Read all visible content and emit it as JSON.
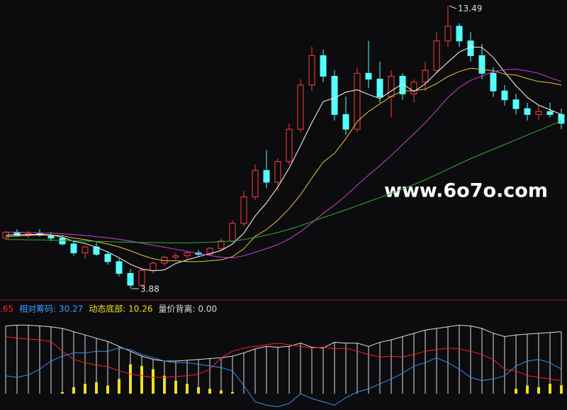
{
  "chart_data": [
    {
      "type": "candlestick",
      "annotation": "www.6o7o.com",
      "high_label": "13.49",
      "low_label": "3.88",
      "ylim": [
        3.64,
        13.69
      ],
      "up_color": "#ff3c3c",
      "down_color": "#54ffff",
      "candles": [
        [
          5.6,
          5.85,
          5.55,
          5.8
        ],
        [
          5.8,
          5.9,
          5.65,
          5.7
        ],
        [
          5.7,
          5.85,
          5.6,
          5.75
        ],
        [
          5.75,
          5.9,
          5.65,
          5.7
        ],
        [
          5.7,
          5.8,
          5.5,
          5.6
        ],
        [
          5.6,
          5.7,
          5.35,
          5.4
        ],
        [
          5.4,
          5.5,
          5.0,
          5.1
        ],
        [
          5.1,
          5.35,
          4.9,
          5.3
        ],
        [
          5.3,
          5.45,
          5.0,
          5.05
        ],
        [
          5.05,
          5.15,
          4.7,
          4.8
        ],
        [
          4.8,
          4.9,
          4.3,
          4.4
        ],
        [
          4.4,
          4.55,
          3.88,
          4.0
        ],
        [
          4.0,
          4.6,
          3.95,
          4.5
        ],
        [
          4.5,
          4.8,
          4.4,
          4.75
        ],
        [
          4.75,
          5.0,
          4.65,
          4.95
        ],
        [
          4.95,
          5.1,
          4.85,
          5.0
        ],
        [
          5.0,
          5.15,
          4.9,
          5.1
        ],
        [
          5.1,
          5.2,
          4.95,
          5.05
        ],
        [
          5.05,
          5.3,
          5.0,
          5.25
        ],
        [
          5.25,
          5.6,
          5.2,
          5.5
        ],
        [
          5.5,
          6.2,
          5.45,
          6.1
        ],
        [
          6.1,
          7.2,
          6.0,
          7.0
        ],
        [
          7.0,
          8.1,
          6.9,
          7.9
        ],
        [
          7.9,
          8.6,
          7.3,
          7.5
        ],
        [
          7.5,
          8.3,
          7.2,
          8.2
        ],
        [
          8.2,
          9.5,
          8.1,
          9.3
        ],
        [
          9.3,
          11.0,
          9.2,
          10.8
        ],
        [
          10.8,
          12.1,
          10.6,
          11.8
        ],
        [
          11.8,
          12.0,
          10.9,
          11.1
        ],
        [
          11.1,
          11.3,
          9.6,
          9.8
        ],
        [
          9.8,
          10.4,
          9.1,
          9.3
        ],
        [
          9.3,
          11.4,
          9.2,
          11.2
        ],
        [
          11.2,
          12.3,
          10.7,
          11.0
        ],
        [
          11.0,
          11.6,
          10.2,
          10.4
        ],
        [
          10.4,
          11.3,
          9.7,
          11.1
        ],
        [
          11.1,
          11.2,
          10.3,
          10.5
        ],
        [
          10.5,
          11.0,
          10.2,
          10.9
        ],
        [
          10.9,
          11.6,
          10.6,
          11.3
        ],
        [
          11.3,
          12.6,
          11.2,
          12.3
        ],
        [
          12.3,
          13.49,
          12.1,
          12.8
        ],
        [
          12.8,
          12.9,
          12.1,
          12.3
        ],
        [
          12.3,
          12.6,
          11.6,
          11.8
        ],
        [
          11.8,
          12.2,
          11.0,
          11.2
        ],
        [
          11.2,
          11.4,
          10.4,
          10.6
        ],
        [
          10.6,
          10.8,
          10.1,
          10.3
        ],
        [
          10.3,
          10.5,
          9.8,
          10.0
        ],
        [
          10.0,
          10.2,
          9.6,
          9.8
        ],
        [
          9.8,
          10.1,
          9.6,
          9.9
        ],
        [
          9.9,
          10.2,
          9.7,
          9.8
        ],
        [
          9.8,
          10.0,
          9.3,
          9.5
        ]
      ],
      "series": [
        {
          "color": "#ffffff",
          "values": [
            5.7,
            5.72,
            5.72,
            5.73,
            5.71,
            5.63,
            5.49,
            5.42,
            5.29,
            5.13,
            4.93,
            4.71,
            4.55,
            4.49,
            4.52,
            4.74,
            4.86,
            4.97,
            5.07,
            5.18,
            5.4,
            5.77,
            6.35,
            6.8,
            7.34,
            7.98,
            8.74,
            9.52,
            10.24,
            10.36,
            10.56,
            10.64,
            10.48,
            10.34,
            10.6,
            10.84,
            10.58,
            10.84,
            11.22,
            11.58,
            11.92,
            12.1,
            12.08,
            11.74,
            11.24,
            10.78,
            10.38,
            10.12,
            9.96,
            9.8
          ]
        },
        {
          "color": "#e8c838",
          "values": [
            5.65,
            5.67,
            5.69,
            5.7,
            5.7,
            5.68,
            5.6,
            5.55,
            5.48,
            5.4,
            5.3,
            5.17,
            5.02,
            4.9,
            4.83,
            4.83,
            4.8,
            4.8,
            4.83,
            4.86,
            4.97,
            5.24,
            5.66,
            5.89,
            6.21,
            6.6,
            7.07,
            7.64,
            8.18,
            8.48,
            8.98,
            9.56,
            9.9,
            10.16,
            10.42,
            10.6,
            10.61,
            10.66,
            10.85,
            11.09,
            11.26,
            11.37,
            11.33,
            11.29,
            11.17,
            11.14,
            11.02,
            10.92,
            10.88,
            10.8
          ]
        },
        {
          "color": "#d040d8",
          "values": [
            5.8,
            5.8,
            5.79,
            5.78,
            5.77,
            5.75,
            5.72,
            5.69,
            5.65,
            5.61,
            5.56,
            5.5,
            5.43,
            5.36,
            5.29,
            5.22,
            5.15,
            5.08,
            5.01,
            4.95,
            4.93,
            5.0,
            5.12,
            5.24,
            5.38,
            5.57,
            5.82,
            6.12,
            6.44,
            6.72,
            7.04,
            7.4,
            7.74,
            8.06,
            8.41,
            8.78,
            9.14,
            9.52,
            9.94,
            10.38,
            10.72,
            10.96,
            11.1,
            11.26,
            11.32,
            11.34,
            11.28,
            11.2,
            11.05,
            10.92
          ]
        },
        {
          "color": "#30b030",
          "values": [
            5.55,
            5.55,
            5.54,
            5.54,
            5.53,
            5.52,
            5.51,
            5.5,
            5.49,
            5.48,
            5.47,
            5.46,
            5.45,
            5.45,
            5.44,
            5.44,
            5.44,
            5.45,
            5.46,
            5.48,
            5.5,
            5.55,
            5.62,
            5.7,
            5.79,
            5.9,
            6.02,
            6.16,
            6.3,
            6.43,
            6.56,
            6.7,
            6.84,
            6.98,
            7.12,
            7.27,
            7.42,
            7.58,
            7.76,
            7.94,
            8.12,
            8.3,
            8.46,
            8.62,
            8.78,
            8.94,
            9.1,
            9.26,
            9.42,
            9.58
          ]
        }
      ]
    },
    {
      "type": "indicator",
      "legend": [
        {
          "text": ".65",
          "color": "#ff2020"
        },
        {
          "text": "相对筹码: 30.27",
          "color": "#3aa0ff"
        },
        {
          "text": "动态底部: 10.26",
          "color": "#f0e020"
        },
        {
          "text": "量价背离: 0.00",
          "color": "#dddddd"
        }
      ],
      "ylim": [
        -20,
        100
      ],
      "bars": [
        {
          "color": "#dddddd",
          "values": [
            83,
            84,
            84,
            83,
            82,
            80,
            76,
            72,
            68,
            64,
            58,
            52,
            46,
            42,
            40,
            40,
            41,
            42,
            43,
            44,
            46,
            50,
            55,
            58,
            57,
            58,
            62,
            57,
            56,
            63,
            62,
            62,
            58,
            63,
            66,
            70,
            74,
            78,
            80,
            82,
            84,
            83,
            80,
            74,
            70,
            72,
            73,
            74,
            75,
            76
          ]
        },
        {
          "color": "#f0e020",
          "values": [
            0,
            0,
            0,
            0,
            0,
            2,
            8,
            12,
            14,
            10,
            18,
            36,
            34,
            30,
            22,
            16,
            12,
            8,
            6,
            4,
            2,
            0,
            0,
            0,
            0,
            0,
            0,
            0,
            0,
            0,
            0,
            0,
            0,
            0,
            0,
            0,
            0,
            0,
            0,
            0,
            0,
            0,
            0,
            0,
            0,
            6,
            10,
            8,
            12,
            10.26
          ]
        }
      ],
      "series": [
        {
          "color": "#ff2020",
          "values": [
            70,
            68,
            67,
            66,
            64,
            52,
            42,
            38,
            35,
            33,
            28,
            24,
            22,
            20,
            20,
            21,
            22,
            24,
            30,
            44,
            52,
            56,
            58,
            60,
            62,
            60,
            58,
            56,
            57,
            55,
            56,
            52,
            48,
            45,
            46,
            45,
            48,
            52,
            54,
            56,
            55,
            52,
            48,
            42,
            30,
            28,
            22,
            20,
            18,
            16
          ]
        },
        {
          "color": "#3a90f0",
          "values": [
            22,
            20,
            23,
            30,
            40,
            46,
            50,
            50,
            52,
            52,
            56,
            54,
            48,
            44,
            40,
            38,
            38,
            36,
            34,
            32,
            28,
            10,
            -10,
            -14,
            -16,
            -12,
            0,
            -6,
            -10,
            -14,
            -5,
            2,
            6,
            12,
            18,
            25,
            34,
            38,
            44,
            38,
            30,
            20,
            16,
            18,
            22,
            34,
            40,
            42,
            38,
            30.27
          ]
        }
      ]
    }
  ]
}
